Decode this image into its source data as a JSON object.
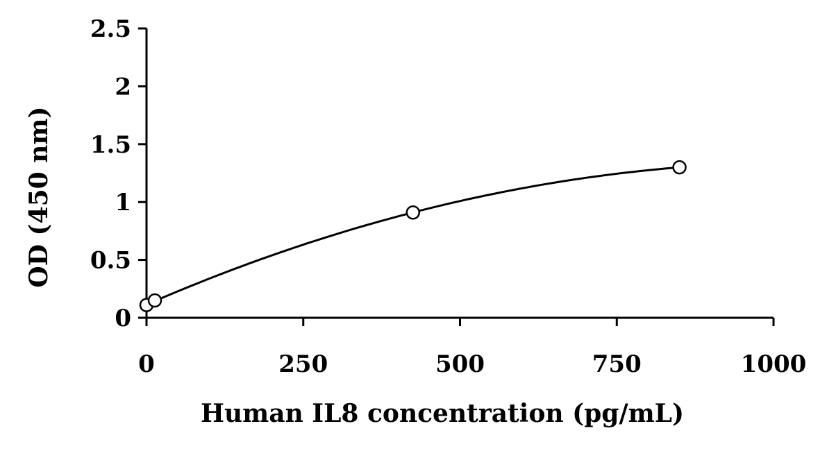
{
  "chart_data": {
    "type": "scatter",
    "title": "",
    "xlabel": "Human IL8 concentration (pg/mL)",
    "ylabel": "OD (450 nm)",
    "xlim": [
      0,
      1000
    ],
    "ylim": [
      0,
      2.5
    ],
    "x_ticks": [
      0,
      250,
      500,
      750,
      1000
    ],
    "x_tick_labels": [
      "0",
      "250",
      "500",
      "750",
      "1000"
    ],
    "y_ticks": [
      0,
      0.5,
      1,
      1.5,
      2,
      2.5
    ],
    "y_tick_labels": [
      "0",
      "0.5",
      "1",
      "1.5",
      "2",
      "2.5"
    ],
    "grid": false,
    "legend": "none",
    "series": [
      {
        "marker": "open-circle",
        "points": [
          {
            "x": 0,
            "y": 0.11
          },
          {
            "x": 13.3,
            "y": 0.15
          },
          {
            "x": 425,
            "y": 0.91
          },
          {
            "x": 850,
            "y": 1.3
          }
        ],
        "fit_curve": true
      }
    ]
  }
}
